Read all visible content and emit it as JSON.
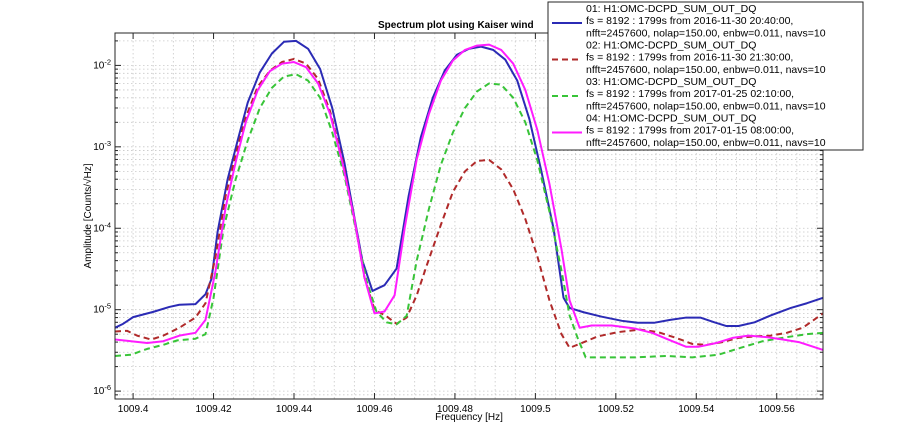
{
  "chart_data": {
    "type": "line",
    "title": "Spectrum plot using Kaiser wind",
    "xlabel": "Frequency [Hz]",
    "ylabel": "Amplitude [Counts/√Hz]",
    "x_scale": "linear",
    "y_scale": "log",
    "xlim": [
      1009.3955,
      1009.5715
    ],
    "ylim": [
      8e-07,
      0.025
    ],
    "grid": true,
    "legend_position": "top-right",
    "x_ticks": [
      {
        "value": 1009.4,
        "label": "1009.4"
      },
      {
        "value": 1009.42,
        "label": "1009.42"
      },
      {
        "value": 1009.44,
        "label": "1009.44"
      },
      {
        "value": 1009.46,
        "label": "1009.46"
      },
      {
        "value": 1009.48,
        "label": "1009.48"
      },
      {
        "value": 1009.5,
        "label": "1009.5"
      },
      {
        "value": 1009.52,
        "label": "1009.52"
      },
      {
        "value": 1009.54,
        "label": "1009.54"
      },
      {
        "value": 1009.56,
        "label": "1009.56"
      }
    ],
    "y_ticks": [
      {
        "value": 1e-06,
        "mantissa": "10",
        "exp": "-6"
      },
      {
        "value": 1e-05,
        "mantissa": "10",
        "exp": "-5"
      },
      {
        "value": 0.0001,
        "mantissa": "10",
        "exp": "-4"
      },
      {
        "value": 0.001,
        "mantissa": "10",
        "exp": "-3"
      },
      {
        "value": 0.01,
        "mantissa": "10",
        "exp": "-2"
      }
    ],
    "series": [
      {
        "label_lines": [
          "01: H1:OMC-DCPD_SUM_OUT_DQ",
          "fs = 8192 : 1799s from 2016-11-30 20:40:00,",
          "nfft=2457600, nolap=150.00, enbw=0.011, navs=10"
        ],
        "color": "#2b2bb5",
        "dash": "solid",
        "points": [
          [
            1009.3955,
            6e-06
          ],
          [
            1009.3975,
            6.7e-06
          ],
          [
            1009.4,
            8.1e-06
          ],
          [
            1009.405,
            9.4e-06
          ],
          [
            1009.409,
            1.08e-05
          ],
          [
            1009.4115,
            1.15e-05
          ],
          [
            1009.4155,
            1.17e-05
          ],
          [
            1009.418,
            1.55e-05
          ],
          [
            1009.4195,
            2.4e-05
          ],
          [
            1009.421,
            9e-05
          ],
          [
            1009.4235,
            0.0004
          ],
          [
            1009.426,
            0.0012
          ],
          [
            1009.4285,
            0.0035
          ],
          [
            1009.4315,
            0.0082
          ],
          [
            1009.4345,
            0.014
          ],
          [
            1009.4375,
            0.0195
          ],
          [
            1009.4405,
            0.02
          ],
          [
            1009.4435,
            0.016
          ],
          [
            1009.4465,
            0.009
          ],
          [
            1009.4495,
            0.003
          ],
          [
            1009.4525,
            0.00065
          ],
          [
            1009.4555,
            0.0001
          ],
          [
            1009.457,
            4e-05
          ],
          [
            1009.4595,
            1.7e-05
          ],
          [
            1009.4625,
            2e-05
          ],
          [
            1009.4655,
            3.2e-05
          ],
          [
            1009.4685,
            0.00025
          ],
          [
            1009.4715,
            0.0013
          ],
          [
            1009.4745,
            0.004
          ],
          [
            1009.4775,
            0.0087
          ],
          [
            1009.4805,
            0.0135
          ],
          [
            1009.4835,
            0.016
          ],
          [
            1009.4865,
            0.017
          ],
          [
            1009.4895,
            0.0155
          ],
          [
            1009.4925,
            0.0118
          ],
          [
            1009.4955,
            0.0065
          ],
          [
            1009.4985,
            0.0022
          ],
          [
            1009.5015,
            0.0005
          ],
          [
            1009.5045,
            0.0001
          ],
          [
            1009.507,
            1.4e-05
          ],
          [
            1009.5085,
            1.05e-05
          ],
          [
            1009.512,
            9.3e-06
          ],
          [
            1009.5165,
            8.2e-06
          ],
          [
            1009.5215,
            7.3e-06
          ],
          [
            1009.5255,
            6.9e-06
          ],
          [
            1009.5295,
            6.9e-06
          ],
          [
            1009.5335,
            7.5e-06
          ],
          [
            1009.5375,
            8e-06
          ],
          [
            1009.541,
            8e-06
          ],
          [
            1009.5445,
            7e-06
          ],
          [
            1009.5475,
            6.3e-06
          ],
          [
            1009.5505,
            6.3e-06
          ],
          [
            1009.5545,
            7e-06
          ],
          [
            1009.5585,
            8.5e-06
          ],
          [
            1009.5635,
            1.05e-05
          ],
          [
            1009.5675,
            1.2e-05
          ],
          [
            1009.5715,
            1.4e-05
          ]
        ]
      },
      {
        "label_lines": [
          "02: H1:OMC-DCPD_SUM_OUT_DQ",
          "fs = 8192 : 1799s from 2016-11-30 21:30:00,",
          "nfft=2457600, nolap=150.00, enbw=0.011, navs=10"
        ],
        "color": "#b02a2a",
        "dash": "dashed",
        "points": [
          [
            1009.3955,
            5.4e-06
          ],
          [
            1009.3985,
            5.5e-06
          ],
          [
            1009.401,
            4.8e-06
          ],
          [
            1009.4045,
            4.3e-06
          ],
          [
            1009.4075,
            4.8e-06
          ],
          [
            1009.4115,
            6e-06
          ],
          [
            1009.4155,
            8e-06
          ],
          [
            1009.418,
            1.2e-05
          ],
          [
            1009.4205,
            4.5e-05
          ],
          [
            1009.423,
            0.00025
          ],
          [
            1009.4255,
            0.0008
          ],
          [
            1009.428,
            0.0023
          ],
          [
            1009.431,
            0.0055
          ],
          [
            1009.434,
            0.0086
          ],
          [
            1009.437,
            0.011
          ],
          [
            1009.44,
            0.012
          ],
          [
            1009.443,
            0.0105
          ],
          [
            1009.446,
            0.0068
          ],
          [
            1009.449,
            0.0027
          ],
          [
            1009.452,
            0.0007
          ],
          [
            1009.455,
            0.00013
          ],
          [
            1009.4575,
            2.5e-05
          ],
          [
            1009.46,
            1e-05
          ],
          [
            1009.463,
            8.3e-06
          ],
          [
            1009.4655,
            6.7e-06
          ],
          [
            1009.468,
            8e-06
          ],
          [
            1009.4705,
            1.5e-05
          ],
          [
            1009.473,
            3.5e-05
          ],
          [
            1009.4765,
            0.00011
          ],
          [
            1009.4795,
            0.00028
          ],
          [
            1009.4825,
            0.0005
          ],
          [
            1009.4855,
            0.00067
          ],
          [
            1009.4885,
            0.00069
          ],
          [
            1009.4915,
            0.00053
          ],
          [
            1009.4945,
            0.0003
          ],
          [
            1009.4975,
            0.00013
          ],
          [
            1009.5005,
            4.5e-05
          ],
          [
            1009.5035,
            1.3e-05
          ],
          [
            1009.5065,
            5e-06
          ],
          [
            1009.5085,
            3.4e-06
          ],
          [
            1009.511,
            3.8e-06
          ],
          [
            1009.5155,
            4.7e-06
          ],
          [
            1009.5205,
            5.3e-06
          ],
          [
            1009.526,
            5.7e-06
          ],
          [
            1009.5305,
            5.3e-06
          ],
          [
            1009.535,
            4.5e-06
          ],
          [
            1009.539,
            3.8e-06
          ],
          [
            1009.5425,
            3.7e-06
          ],
          [
            1009.5465,
            4e-06
          ],
          [
            1009.5505,
            4.5e-06
          ],
          [
            1009.5545,
            4.7e-06
          ],
          [
            1009.5585,
            4.8e-06
          ],
          [
            1009.5625,
            5.2e-06
          ],
          [
            1009.5665,
            6e-06
          ],
          [
            1009.5715,
            9e-06
          ]
        ]
      },
      {
        "label_lines": [
          "03: H1:OMC-DCPD_SUM_OUT_DQ",
          "fs = 8192 : 1799s from 2017-01-25 02:10:00,",
          "nfft=2457600, nolap=150.00, enbw=0.011, navs=10"
        ],
        "color": "#38c438",
        "dash": "dashed",
        "points": [
          [
            1009.3955,
            2.7e-06
          ],
          [
            1009.3995,
            2.8e-06
          ],
          [
            1009.4035,
            3.3e-06
          ],
          [
            1009.4075,
            3.7e-06
          ],
          [
            1009.411,
            4.2e-06
          ],
          [
            1009.4155,
            4.4e-06
          ],
          [
            1009.418,
            5e-06
          ],
          [
            1009.42,
            1.4e-05
          ],
          [
            1009.4225,
            0.0001
          ],
          [
            1009.4255,
            0.0004
          ],
          [
            1009.4285,
            0.0012
          ],
          [
            1009.4315,
            0.003
          ],
          [
            1009.4345,
            0.0053
          ],
          [
            1009.4375,
            0.0073
          ],
          [
            1009.4405,
            0.0078
          ],
          [
            1009.4435,
            0.0065
          ],
          [
            1009.4465,
            0.004
          ],
          [
            1009.4495,
            0.0015
          ],
          [
            1009.4525,
            0.00045
          ],
          [
            1009.4555,
            9e-05
          ],
          [
            1009.458,
            2.3e-05
          ],
          [
            1009.4605,
            9.5e-06
          ],
          [
            1009.463,
            7e-06
          ],
          [
            1009.4655,
            6.6e-06
          ],
          [
            1009.468,
            8.4e-06
          ],
          [
            1009.4705,
            4e-05
          ],
          [
            1009.4735,
            0.00017
          ],
          [
            1009.4765,
            0.0006
          ],
          [
            1009.4795,
            0.0015
          ],
          [
            1009.4825,
            0.003
          ],
          [
            1009.4855,
            0.0048
          ],
          [
            1009.4885,
            0.006
          ],
          [
            1009.4915,
            0.0058
          ],
          [
            1009.4945,
            0.004
          ],
          [
            1009.4975,
            0.002
          ],
          [
            1009.5005,
            0.00068
          ],
          [
            1009.5035,
            0.00016
          ],
          [
            1009.5065,
            3e-05
          ],
          [
            1009.5085,
            8.5e-06
          ],
          [
            1009.5105,
            4.5e-06
          ],
          [
            1009.5125,
            2.6e-06
          ],
          [
            1009.518,
            2.6e-06
          ],
          [
            1009.525,
            2.6e-06
          ],
          [
            1009.5325,
            2.7e-06
          ],
          [
            1009.539,
            2.6e-06
          ],
          [
            1009.5455,
            2.8e-06
          ],
          [
            1009.551,
            3.4e-06
          ],
          [
            1009.5565,
            4.1e-06
          ],
          [
            1009.5625,
            4.6e-06
          ],
          [
            1009.5675,
            5e-06
          ],
          [
            1009.5715,
            5.2e-06
          ]
        ]
      },
      {
        "label_lines": [
          "04: H1:OMC-DCPD_SUM_OUT_DQ",
          "fs = 8192 : 1799s from 2017-01-15 08:00:00,",
          "nfft=2457600, nolap=150.00, enbw=0.011, navs=10"
        ],
        "color": "#ff1cff",
        "dash": "solid",
        "points": [
          [
            1009.3955,
            4.3e-06
          ],
          [
            1009.3995,
            4.1e-06
          ],
          [
            1009.4035,
            3.9e-06
          ],
          [
            1009.4075,
            4.1e-06
          ],
          [
            1009.4115,
            4.8e-06
          ],
          [
            1009.4155,
            5.2e-06
          ],
          [
            1009.418,
            7.5e-06
          ],
          [
            1009.4205,
            3e-05
          ],
          [
            1009.423,
            0.00018
          ],
          [
            1009.4255,
            0.00065
          ],
          [
            1009.428,
            0.002
          ],
          [
            1009.431,
            0.005
          ],
          [
            1009.434,
            0.0085
          ],
          [
            1009.437,
            0.0105
          ],
          [
            1009.44,
            0.011
          ],
          [
            1009.443,
            0.0095
          ],
          [
            1009.446,
            0.006
          ],
          [
            1009.449,
            0.0025
          ],
          [
            1009.452,
            0.00065
          ],
          [
            1009.455,
            0.00013
          ],
          [
            1009.4575,
            2.5e-05
          ],
          [
            1009.46,
            9e-06
          ],
          [
            1009.4625,
            9.5e-06
          ],
          [
            1009.465,
            1.5e-05
          ],
          [
            1009.4675,
            0.0001
          ],
          [
            1009.4705,
            0.0007
          ],
          [
            1009.4735,
            0.0025
          ],
          [
            1009.4765,
            0.0065
          ],
          [
            1009.4795,
            0.0115
          ],
          [
            1009.4825,
            0.0155
          ],
          [
            1009.4855,
            0.0175
          ],
          [
            1009.4885,
            0.018
          ],
          [
            1009.4915,
            0.0155
          ],
          [
            1009.4945,
            0.0105
          ],
          [
            1009.4975,
            0.005
          ],
          [
            1009.5005,
            0.0016
          ],
          [
            1009.5035,
            0.00035
          ],
          [
            1009.5065,
            5.5e-05
          ],
          [
            1009.5085,
            1.3e-05
          ],
          [
            1009.511,
            6e-06
          ],
          [
            1009.514,
            6.4e-06
          ],
          [
            1009.519,
            6.4e-06
          ],
          [
            1009.5245,
            5.9e-06
          ],
          [
            1009.529,
            5.2e-06
          ],
          [
            1009.5335,
            4.2e-06
          ],
          [
            1009.5375,
            3.5e-06
          ],
          [
            1009.5405,
            3.5e-06
          ],
          [
            1009.545,
            3.9e-06
          ],
          [
            1009.549,
            4.5e-06
          ],
          [
            1009.553,
            4.8e-06
          ],
          [
            1009.5575,
            4.6e-06
          ],
          [
            1009.5615,
            4.3e-06
          ],
          [
            1009.5655,
            4e-06
          ],
          [
            1009.5715,
            3.2e-06
          ]
        ]
      }
    ]
  }
}
